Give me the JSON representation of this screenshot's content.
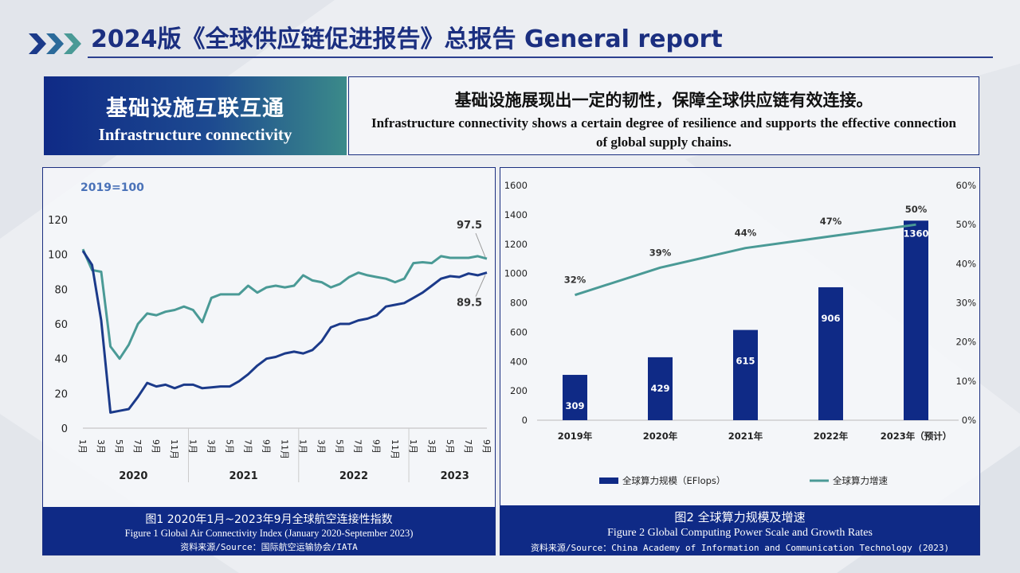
{
  "header": {
    "title": "2024版《全球供应链促进报告》总报告 General report"
  },
  "section_tag": {
    "cn": "基础设施互联互通",
    "en": "Infrastructure connectivity"
  },
  "summary": {
    "cn": "基础设施展现出一定的韧性，保障全球供应链有效连接。",
    "en": "Infrastructure  connectivity  shows a certain  degree of resilience  and supports  the effective connection  of global supply  chains."
  },
  "colors": {
    "navy": "#1b3a8a",
    "teal": "#4a9a96",
    "bar": "#0f2a86",
    "caption_bg": "#0f2a86"
  },
  "figure1": {
    "base_note": "2019=100",
    "caption_cn": "图1 2020年1月~2023年9月全球航空连接性指数",
    "caption_en": "Figure 1 Global  Air Connectivity Index (January 2020-September  2023)",
    "caption_source": "资料来源/Source：国际航空运输协会/IATA"
  },
  "figure2": {
    "caption_cn": "图2 全球算力规模及增速",
    "caption_en": "Figure  2 Global Computing  Power Scale and Growth Rates",
    "caption_source": "资料来源/Source：China Academy of Information and Communication Technology (2023)"
  },
  "chart_data": [
    {
      "type": "line",
      "x_tick_labels": [
        "1月",
        "3月",
        "5月",
        "7月",
        "9月",
        "11月",
        "1月",
        "3月",
        "5月",
        "7月",
        "9月",
        "11月",
        "1月",
        "3月",
        "5月",
        "7月",
        "9月",
        "11月",
        "1月",
        "3月",
        "5月",
        "7月",
        "9月"
      ],
      "x_year_labels": [
        "2020",
        "2021",
        "2022",
        "2023"
      ],
      "ylim": [
        0,
        120
      ],
      "yticks": [
        0,
        20,
        40,
        60,
        80,
        100,
        120
      ],
      "grid": false,
      "series": [
        {
          "color": "#1b3a8a",
          "values": [
            102,
            94,
            62,
            9,
            10,
            11,
            18,
            26,
            24,
            25,
            23,
            25,
            25,
            23,
            23.5,
            24,
            24,
            27,
            31,
            36,
            40,
            41,
            43,
            44,
            43,
            45,
            50,
            58,
            60,
            60,
            62,
            63,
            65,
            70,
            71,
            72,
            75,
            78,
            82,
            86,
            87.5,
            87,
            89,
            88,
            89.5
          ]
        },
        {
          "color": "#4a9a96",
          "values": [
            103,
            91,
            90,
            47,
            40,
            48,
            60,
            66,
            65,
            67,
            68,
            70,
            68,
            61,
            75,
            77,
            77,
            77,
            82,
            78,
            81,
            82,
            81,
            82,
            88,
            85,
            84,
            81,
            83,
            87,
            89.5,
            88,
            87,
            86,
            84,
            86,
            95,
            95.5,
            95,
            99,
            98,
            98,
            98,
            99,
            97.5
          ]
        }
      ],
      "annotations": [
        "97.5",
        "89.5"
      ]
    },
    {
      "type": "bar",
      "categories": [
        "2019年",
        "2020年",
        "2021年",
        "2022年",
        "2023年（预计）"
      ],
      "series": [
        {
          "name": "全球算力规模（EFlops）",
          "axis": "left",
          "type": "bar",
          "color": "#0f2a86",
          "values": [
            309,
            429,
            615,
            906,
            1360
          ]
        },
        {
          "name": "全球算力增速",
          "axis": "right",
          "type": "line",
          "color": "#4a9a96",
          "values": [
            32,
            39,
            44,
            47,
            50
          ],
          "value_labels": [
            "32%",
            "39%",
            "44%",
            "47%",
            "50%"
          ]
        }
      ],
      "ylim": [
        0,
        1600
      ],
      "yticks": [
        0,
        200,
        400,
        600,
        800,
        1000,
        1200,
        1400,
        1600
      ],
      "y2lim": [
        0,
        60
      ],
      "y2ticks": [
        "0%",
        "10%",
        "20%",
        "30%",
        "40%",
        "50%",
        "60%"
      ],
      "legend": "bottom",
      "grid": false
    }
  ]
}
